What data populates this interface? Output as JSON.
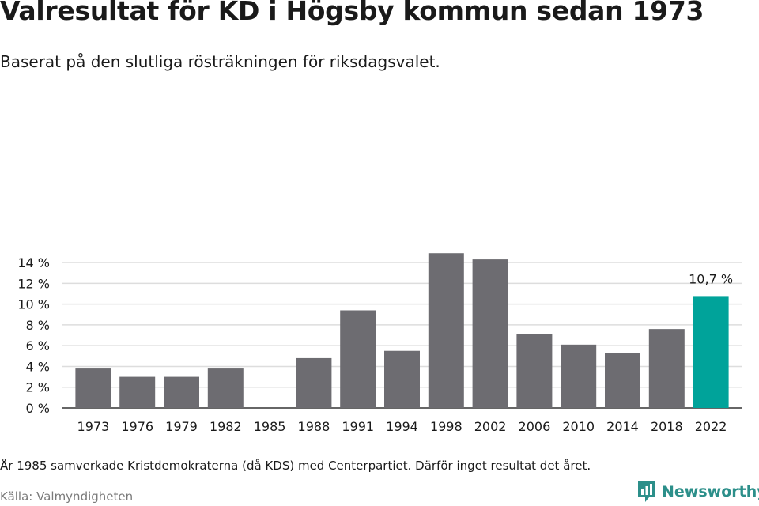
{
  "title": "Valresultat för KD i Högsby kommun sedan 1973",
  "subtitle": "Baserat på den slutliga rösträkningen för riksdagsvalet.",
  "footnote": "År 1985 samverkade Kristdemokraterna (då KDS) med Centerpartiet. Därför inget resultat det året.",
  "source": "Källa: Valmyndigheten",
  "brand": {
    "name": "Newsworthy",
    "icon": "newsworthy-logo-icon",
    "color": "#2c8f8a"
  },
  "colors": {
    "bar": "#6d6c71",
    "highlight": "#00a39a",
    "grid": "#dddddd",
    "axis": "#333333"
  },
  "chart_data": {
    "type": "bar",
    "categories": [
      "1973",
      "1976",
      "1979",
      "1982",
      "1985",
      "1988",
      "1991",
      "1994",
      "1998",
      "2002",
      "2006",
      "2010",
      "2014",
      "2018",
      "2022"
    ],
    "values": [
      3.8,
      3.0,
      3.0,
      3.8,
      null,
      4.8,
      9.4,
      5.5,
      14.9,
      14.3,
      7.1,
      6.1,
      5.3,
      7.6,
      10.7
    ],
    "highlight_index": 14,
    "data_labels": {
      "14": "10,7 %"
    },
    "ylim": [
      0,
      15
    ],
    "yticks": [
      0,
      2,
      4,
      6,
      8,
      10,
      12,
      14
    ],
    "ytick_labels": [
      "0 %",
      "2 %",
      "4 %",
      "6 %",
      "8 %",
      "10 %",
      "12 %",
      "14 %"
    ],
    "grid": true,
    "xlabel": "",
    "ylabel": ""
  }
}
